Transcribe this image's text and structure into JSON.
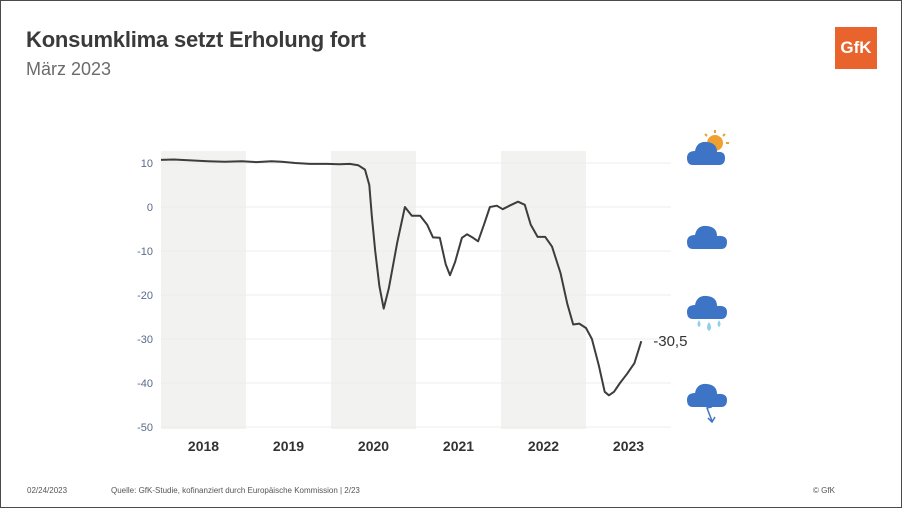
{
  "slide": {
    "title": "Konsumklima setzt Erholung fort",
    "subtitle": "März 2023",
    "logo_text": "GfK"
  },
  "footer": {
    "date": "02/24/2023",
    "source": "Quelle: GfK-Studie, kofinanziert durch Europäische Kommission | 2/23",
    "copyright": "© GfK"
  },
  "colors": {
    "line": "#3d3d3d",
    "shade": "#f2f2f1",
    "axis_text": "#5a6a8a",
    "year_text": "#333333",
    "icon_blue": "#3e74c6",
    "sun": "#f0a030",
    "rain": "#8ed0e8",
    "logo": "#e8642c"
  },
  "weather_icons": [
    "sun-cloud-icon",
    "cloud-icon",
    "rain-cloud-icon",
    "storm-cloud-icon"
  ],
  "chart_data": {
    "type": "line",
    "title": "Konsumklima setzt Erholung fort",
    "ylim": [
      -50,
      12
    ],
    "yticks": [
      10,
      0,
      -10,
      -20,
      -30,
      -40,
      -50
    ],
    "x_unit": "year",
    "xlim": [
      2017.5,
      2023.5
    ],
    "year_labels": [
      "2018",
      "2019",
      "2020",
      "2021",
      "2022",
      "2023"
    ],
    "shaded_years": [
      "2018",
      "2020",
      "2022"
    ],
    "grid": true,
    "end_label": "-30,5",
    "series": [
      {
        "points": [
          [
            2017.5,
            10.7
          ],
          [
            2017.65,
            10.8
          ],
          [
            2017.85,
            10.6
          ],
          [
            2018.05,
            10.4
          ],
          [
            2018.25,
            10.3
          ],
          [
            2018.45,
            10.4
          ],
          [
            2018.62,
            10.2
          ],
          [
            2018.8,
            10.4
          ],
          [
            2018.92,
            10.3
          ],
          [
            2019.08,
            10.0
          ],
          [
            2019.25,
            9.8
          ],
          [
            2019.45,
            9.8
          ],
          [
            2019.6,
            9.7
          ],
          [
            2019.72,
            9.8
          ],
          [
            2019.82,
            9.5
          ],
          [
            2019.9,
            8.5
          ],
          [
            2019.95,
            5.0
          ],
          [
            2019.98,
            -2.0
          ],
          [
            2020.02,
            -10.0
          ],
          [
            2020.07,
            -18.0
          ],
          [
            2020.12,
            -23.1
          ],
          [
            2020.18,
            -18.5
          ],
          [
            2020.28,
            -8.0
          ],
          [
            2020.37,
            0.0
          ],
          [
            2020.45,
            -2.0
          ],
          [
            2020.55,
            -2.0
          ],
          [
            2020.63,
            -4.0
          ],
          [
            2020.7,
            -6.9
          ],
          [
            2020.78,
            -7.0
          ],
          [
            2020.85,
            -13.0
          ],
          [
            2020.9,
            -15.5
          ],
          [
            2020.96,
            -12.5
          ],
          [
            2021.04,
            -7.0
          ],
          [
            2021.1,
            -6.2
          ],
          [
            2021.17,
            -7.0
          ],
          [
            2021.23,
            -7.8
          ],
          [
            2021.3,
            -4.0
          ],
          [
            2021.37,
            0.0
          ],
          [
            2021.45,
            0.3
          ],
          [
            2021.52,
            -0.5
          ],
          [
            2021.6,
            0.3
          ],
          [
            2021.7,
            1.2
          ],
          [
            2021.78,
            0.5
          ],
          [
            2021.85,
            -4.0
          ],
          [
            2021.93,
            -6.8
          ],
          [
            2022.02,
            -6.8
          ],
          [
            2022.1,
            -9.0
          ],
          [
            2022.2,
            -15.0
          ],
          [
            2022.28,
            -22.0
          ],
          [
            2022.35,
            -26.7
          ],
          [
            2022.42,
            -26.5
          ],
          [
            2022.5,
            -27.5
          ],
          [
            2022.57,
            -30.0
          ],
          [
            2022.65,
            -36.0
          ],
          [
            2022.72,
            -42.0
          ],
          [
            2022.77,
            -42.8
          ],
          [
            2022.83,
            -42.0
          ],
          [
            2022.9,
            -40.0
          ],
          [
            2022.98,
            -38.0
          ],
          [
            2023.07,
            -35.5
          ],
          [
            2023.15,
            -30.5
          ]
        ]
      }
    ]
  }
}
